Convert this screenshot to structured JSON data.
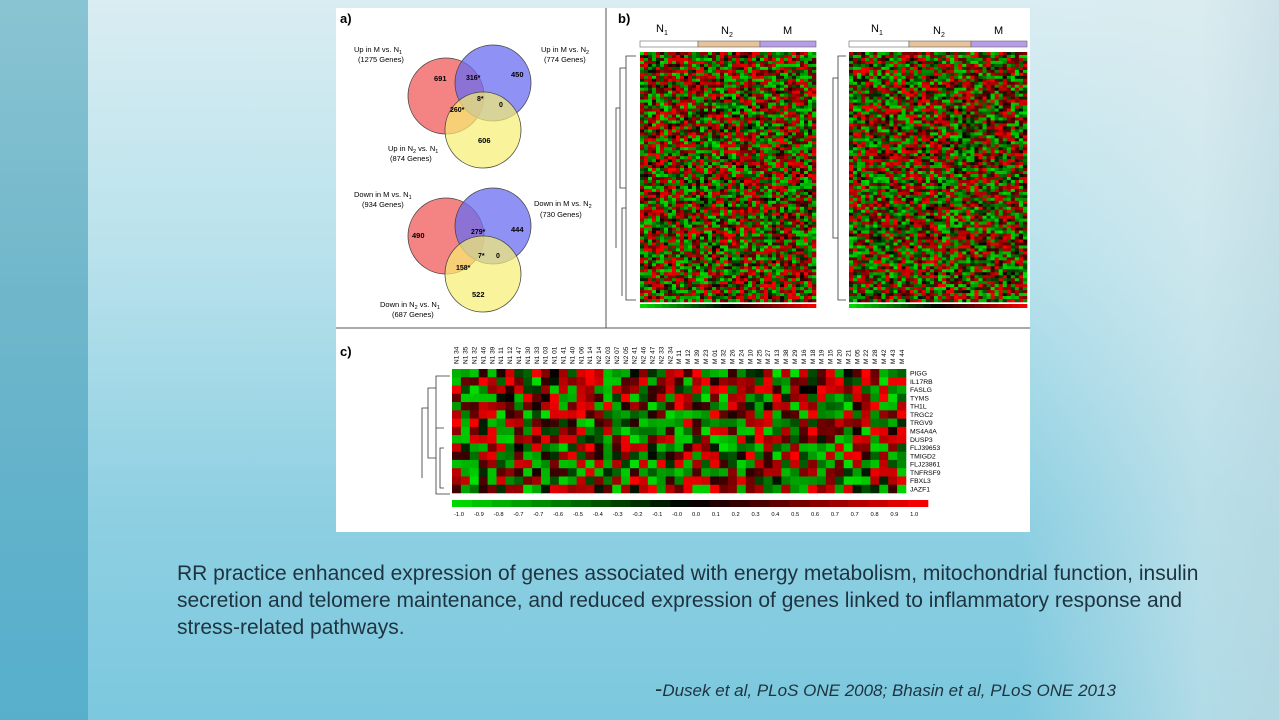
{
  "figure": {
    "panel_a": {
      "label": "a)",
      "venn_up": {
        "sets": [
          {
            "line1": "Up in M vs. N",
            "sub": "1",
            "line2": "(1275 Genes)",
            "color": "#f26d6d"
          },
          {
            "line1": "Up in M vs. N",
            "sub": "2",
            "line2": "(774 Genes)",
            "color": "#6a6cf0"
          },
          {
            "line1": "Up in N",
            "sub": "2",
            "mid": " vs. N",
            "sub2": "1",
            "line2": "(874 Genes)",
            "color": "#f6f070"
          }
        ],
        "regions": {
          "a_only": "691",
          "b_only": "450",
          "c_only": "606",
          "ab": "316*",
          "ac": "260*",
          "bc": "0",
          "abc": "8*"
        }
      },
      "venn_down": {
        "sets": [
          {
            "line1": "Down in M vs. N",
            "sub": "1",
            "line2": "(934 Genes)",
            "color": "#f26d6d"
          },
          {
            "line1": "Down in M vs. N",
            "sub": "2",
            "line2": "(730 Genes)",
            "color": "#6a6cf0"
          },
          {
            "line1": "Down in N",
            "sub": "2",
            "mid": " vs. N",
            "sub2": "1",
            "line2": "(687 Genes)",
            "color": "#f6f070"
          }
        ],
        "regions": {
          "a_only": "490",
          "b_only": "444",
          "c_only": "522",
          "ab": "279*",
          "ac": "158*",
          "bc": "0",
          "abc": "7*"
        }
      }
    },
    "panel_b": {
      "label": "b)",
      "groups": [
        {
          "name": "N",
          "sub": "1",
          "color": "#ffffff"
        },
        {
          "name": "N",
          "sub": "2",
          "color": "#e8c39a"
        },
        {
          "name": "M",
          "sub": "",
          "color": "#b79ce8"
        }
      ]
    },
    "panel_c": {
      "label": "c)",
      "samples": [
        "N1 34",
        "N1 35",
        "N1 32",
        "N1 46",
        "N1 39",
        "N1 11",
        "N1 12",
        "N1 47",
        "N1 30",
        "N1 33",
        "N1 03",
        "N1 01",
        "N1 41",
        "N1 40",
        "N1 06",
        "N1 14",
        "N2 14",
        "N2 03",
        "N2 07",
        "N2 05",
        "N2 41",
        "N2 46",
        "N2 47",
        "N2 33",
        "N2 34",
        "M 11",
        "M 12",
        "M 39",
        "M 23",
        "M 01",
        "M 32",
        "M 26",
        "M 24",
        "M 10",
        "M 25",
        "M 27",
        "M 13",
        "M 38",
        "M 29",
        "M 16",
        "M 18",
        "M 19",
        "M 15",
        "M 20",
        "M 21",
        "M 05",
        "M 22",
        "M 28",
        "M 42",
        "M 43",
        "M 44"
      ],
      "genes": [
        "PIGG",
        "IL17RB",
        "FASLG",
        "TYMS",
        "TH1L",
        "TRGC2",
        "TRGV9",
        "MS4A4A",
        "DUSP3",
        "FLJ39653",
        "TMIGD2",
        "FLJ23861",
        "TNFRSF9",
        "FBXL3",
        "JAZF1"
      ],
      "scale_ticks": [
        "-1.0",
        "-0.9",
        "-0.8",
        "-0.7",
        "-0.7",
        "-0.6",
        "-0.5",
        "-0.4",
        "-0.3",
        "-0.2",
        "-0.1",
        "-0.0",
        "0.0",
        "0.1",
        "0.2",
        "0.3",
        "0.4",
        "0.5",
        "0.6",
        "0.7",
        "0.7",
        "0.8",
        "0.9",
        "1.0"
      ]
    },
    "colors": {
      "low": "#00e000",
      "mid": "#000000",
      "high": "#ff0000"
    }
  },
  "caption": "RR practice enhanced expression of genes associated with energy metabolism, mitochondrial function, insulin secretion and telomere maintenance, and reduced expression of genes linked to inflammatory response and stress-related pathways.",
  "citation": {
    "dash": "-",
    "text": "Dusek et al, PLoS ONE 2008; Bhasin et al, PLoS ONE 2013"
  }
}
